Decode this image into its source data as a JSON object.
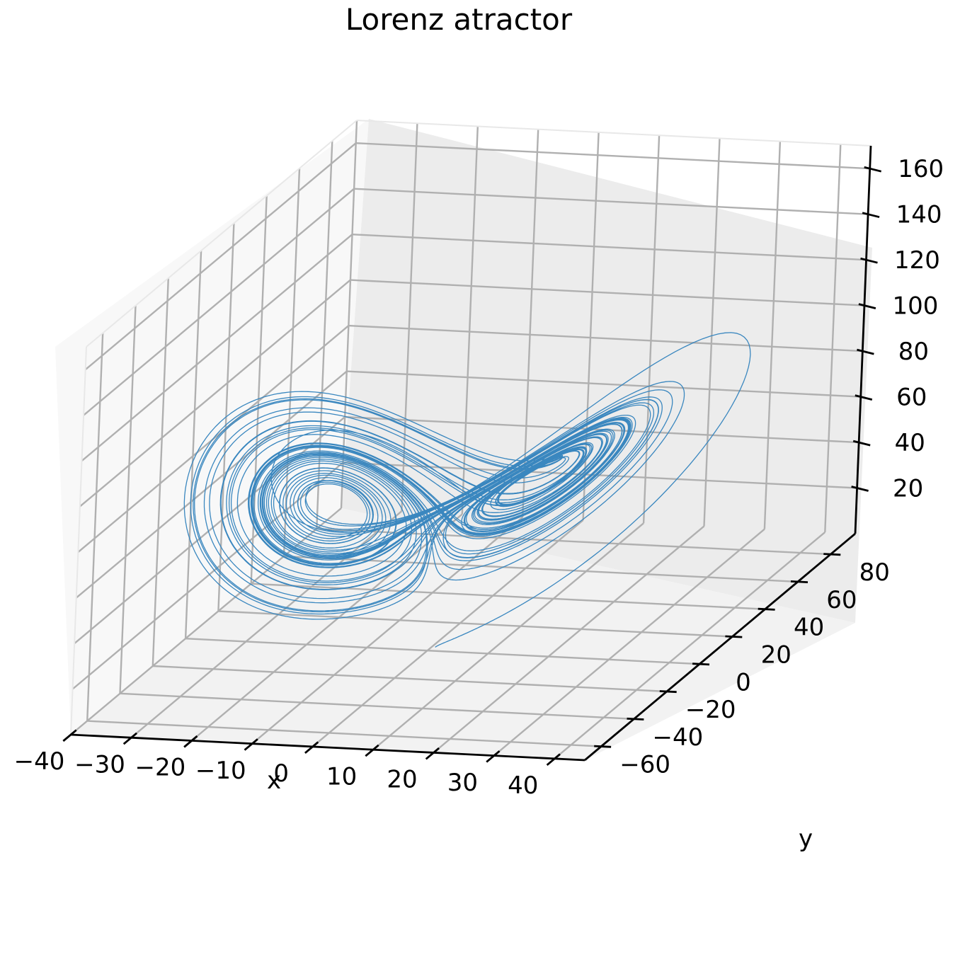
{
  "chart_data": {
    "type": "line",
    "projection": "3d",
    "title": "Lorenz atractor",
    "xlabel": "x",
    "ylabel": "y",
    "zlabel": "",
    "xlim": [
      -40,
      45
    ],
    "ylim": [
      -70,
      95
    ],
    "zlim": [
      0,
      170
    ],
    "x_ticks": [
      "−40",
      "−30",
      "−20",
      "−10",
      "0",
      "10",
      "20",
      "30",
      "40"
    ],
    "y_ticks": [
      "−60",
      "−40",
      "−20",
      "0",
      "20",
      "40",
      "60",
      "80"
    ],
    "z_ticks": [
      "20",
      "40",
      "60",
      "80",
      "100",
      "120",
      "140",
      "160"
    ],
    "grid": true,
    "legend": "none",
    "series": [
      {
        "color": "#3a87bf",
        "line_width": 1.3,
        "model": "lorenz",
        "params": {
          "sigma": 10,
          "rho": 70,
          "beta": 2.6666667
        },
        "initial_state": [
          1,
          1,
          1
        ],
        "dt": 0.002,
        "steps": 20000
      }
    ]
  }
}
